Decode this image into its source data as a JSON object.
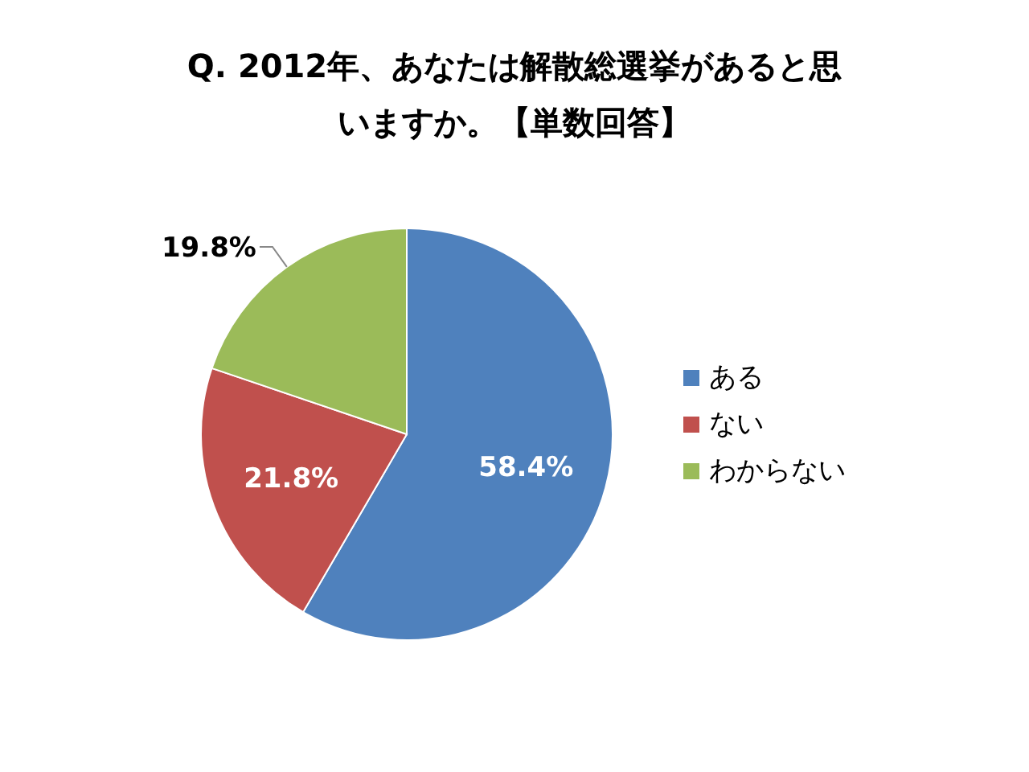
{
  "chart_data": {
    "type": "pie",
    "title": "Q. 2012年、あなたは解散総選挙があると思いますか。【単数回答】",
    "categories": [
      "ある",
      "ない",
      "わからない"
    ],
    "values": [
      58.4,
      21.8,
      19.8
    ],
    "colors": [
      "#4f81bd",
      "#c0504d",
      "#9bbb59"
    ],
    "value_labels": [
      "58.4%",
      "21.8%",
      "19.8%"
    ],
    "legend": "right"
  }
}
